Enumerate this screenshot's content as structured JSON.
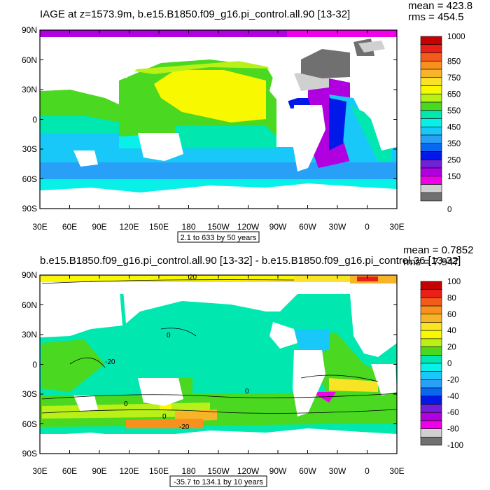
{
  "panels": [
    {
      "title": "IAGE at z=1573.9m, b.e15.B1850.f09_g16.pi_control.all.90 [13-32]",
      "mean": "mean = 423.8",
      "rms": "rms = 454.5",
      "range_label": "2.1 to 633 by 50 years",
      "contour_labels": [],
      "colorbar": {
        "labels": [
          "1000",
          "850",
          "750",
          "650",
          "550",
          "450",
          "350",
          "250",
          "150",
          "0"
        ],
        "colors": [
          "#c40000",
          "#e82018",
          "#f45a1a",
          "#f8901e",
          "#f8b428",
          "#f8e424",
          "#f8f800",
          "#b8f018",
          "#4ad820",
          "#00e8b0",
          "#08f0e8",
          "#18c8f8",
          "#28a0f8",
          "#0868f0",
          "#0018e8",
          "#7020d8",
          "#b000e0",
          "#f000e8",
          "#d0d0d0",
          "#707070"
        ]
      }
    },
    {
      "title": "b.e15.B1850.f09_g16.pi_control.all.90 [13-32] - b.e15.B1850.f09_g16.pi_control.36 [13-32]",
      "mean": "mean = 0.7852",
      "rms": "rms = 7.947",
      "range_label": "-35.7 to 134.1 by 10 years",
      "contour_labels": [
        "20",
        "0",
        "0",
        "0",
        "0",
        "-20",
        "-20"
      ],
      "colorbar": {
        "labels": [
          "100",
          "80",
          "60",
          "40",
          "20",
          "0",
          "-20",
          "-40",
          "-60",
          "-80",
          "-100"
        ],
        "colors": [
          "#c40000",
          "#e82018",
          "#f45a1a",
          "#f8901e",
          "#f8b428",
          "#f8e424",
          "#f8f800",
          "#b8f018",
          "#4ad820",
          "#00e8b0",
          "#08f0e8",
          "#18c8f8",
          "#28a0f8",
          "#0868f0",
          "#0018e8",
          "#7020d8",
          "#b000e0",
          "#f000e8",
          "#d0d0d0",
          "#707070"
        ]
      }
    }
  ],
  "axes": {
    "lat_labels": [
      "90N",
      "60N",
      "30N",
      "0",
      "30S",
      "60S",
      "90S"
    ],
    "lon_labels": [
      "30E",
      "60E",
      "90E",
      "120E",
      "150E",
      "180",
      "150W",
      "120W",
      "90W",
      "60W",
      "30W",
      "0",
      "30E"
    ]
  }
}
